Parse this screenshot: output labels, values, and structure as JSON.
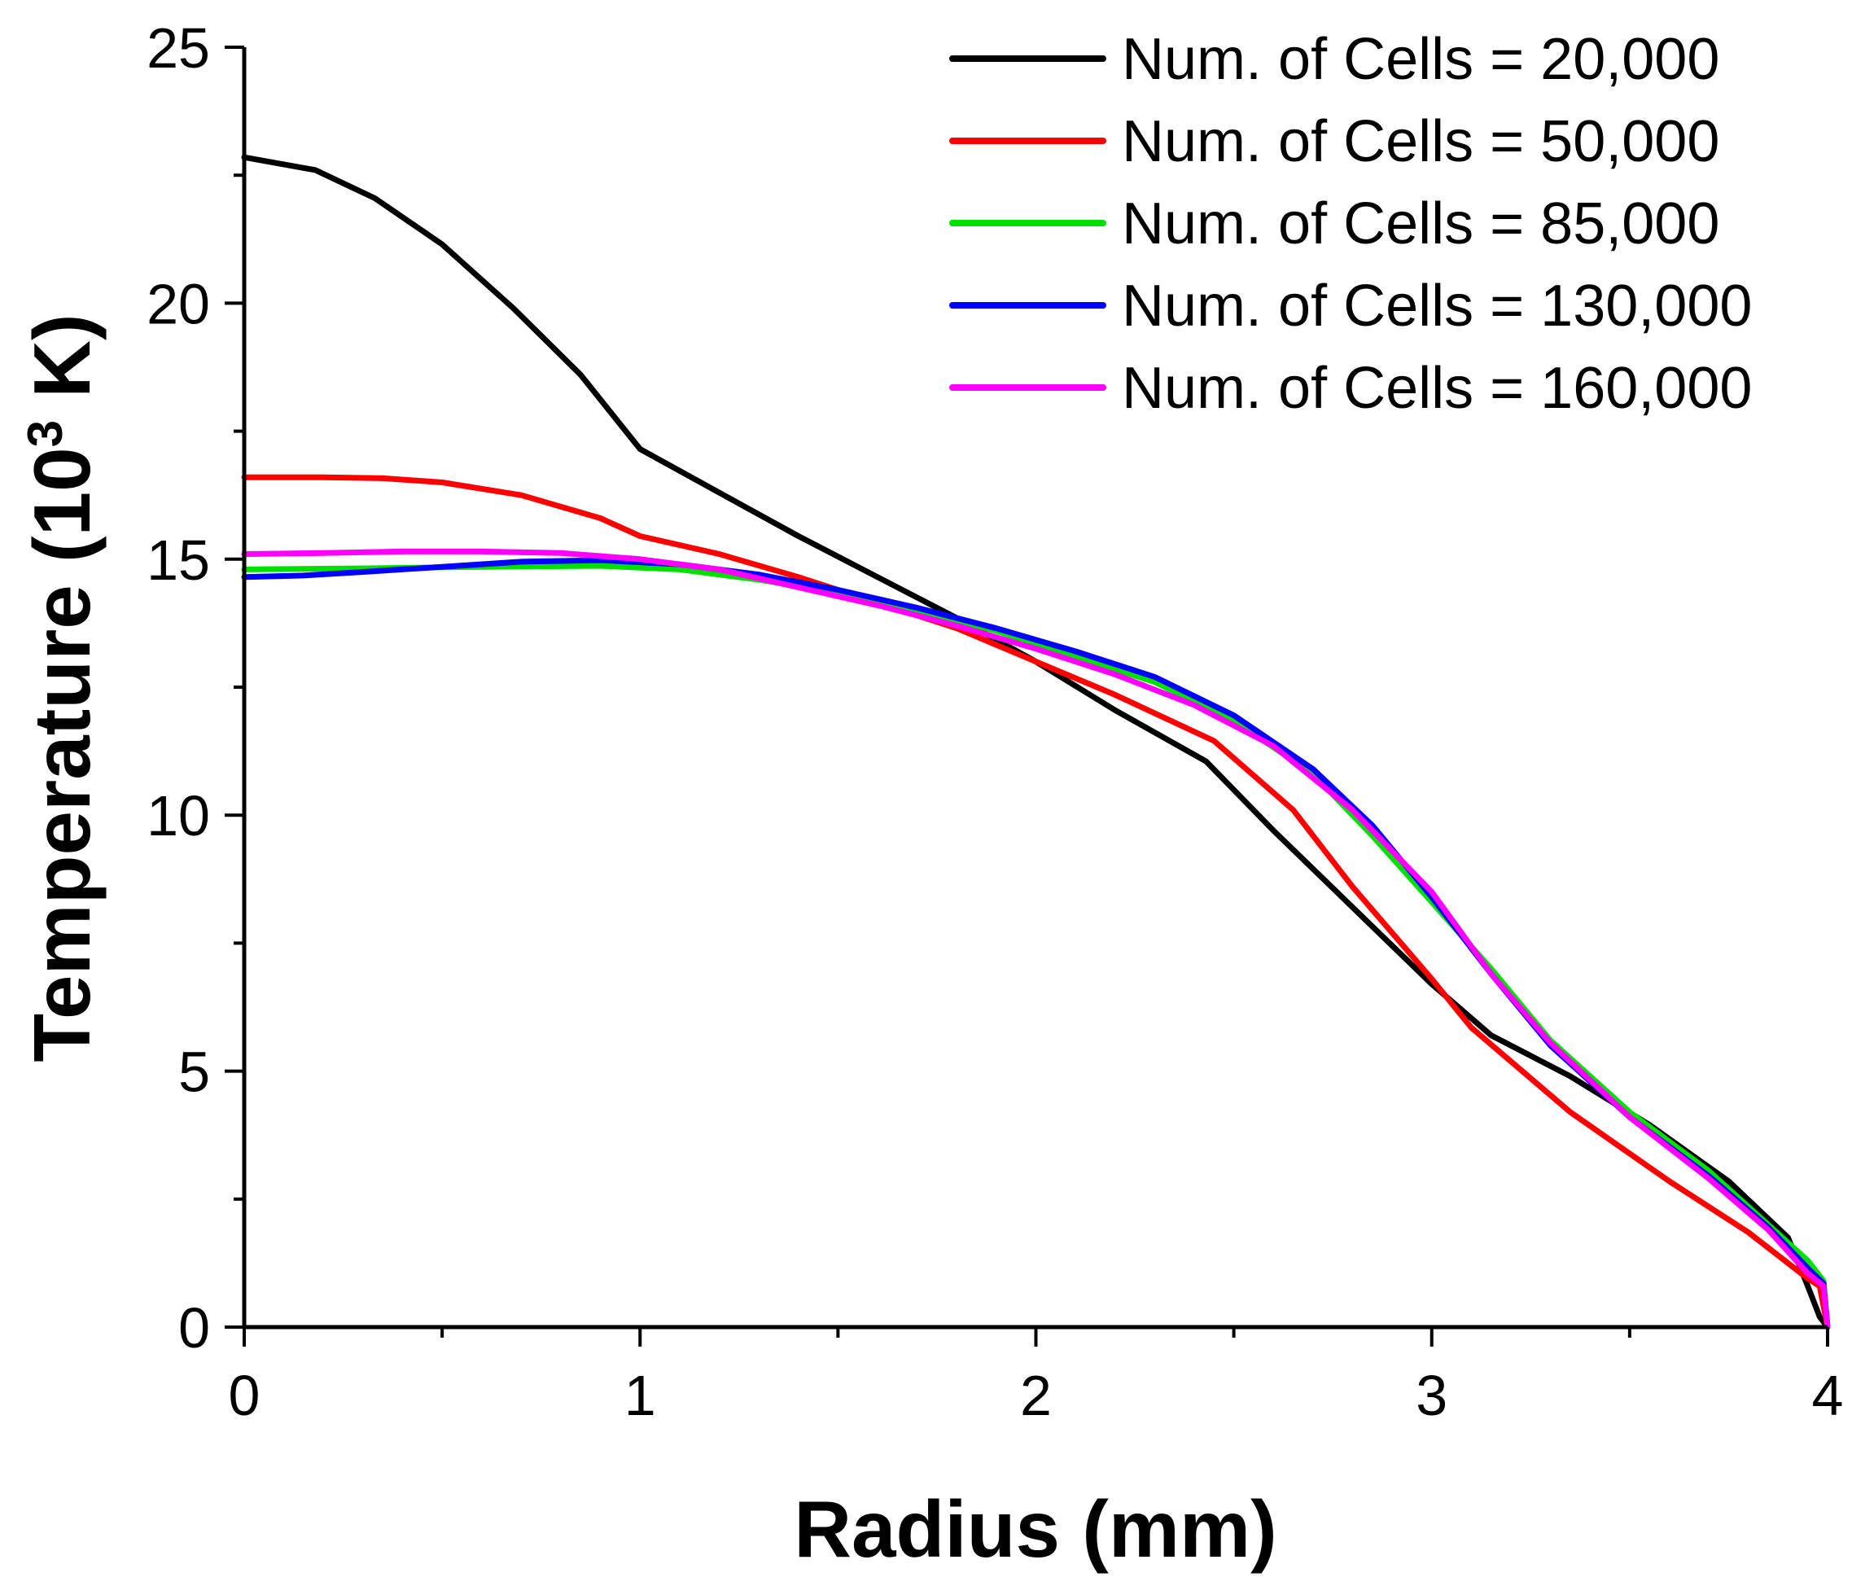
{
  "chart_data": {
    "type": "line",
    "title": "",
    "xlabel": "Radius (mm)",
    "ylabel_parts": {
      "before": "Temperature (10",
      "superscript": "3",
      "after": " K)"
    },
    "xlim": [
      0,
      4
    ],
    "ylim": [
      0,
      25
    ],
    "xticks": [
      0,
      1,
      2,
      3,
      4
    ],
    "xtick_labels": [
      "0",
      "1",
      "2",
      "3",
      "4"
    ],
    "yticks": [
      0,
      5,
      10,
      15,
      20,
      25
    ],
    "ytick_labels": [
      "0",
      "5",
      "10",
      "15",
      "20",
      "25"
    ],
    "grid": false,
    "legend_position": "top-right",
    "series": [
      {
        "name": "Num. of Cells = 20,000",
        "color": "#000000",
        "x": [
          0,
          0.18,
          0.33,
          0.5,
          0.68,
          0.85,
          1.0,
          1.2,
          1.4,
          1.6,
          1.8,
          2.0,
          2.2,
          2.43,
          2.6,
          2.8,
          3.0,
          3.15,
          3.35,
          3.55,
          3.75,
          3.9,
          3.95,
          3.98,
          4.0
        ],
        "y": [
          22.85,
          22.6,
          22.05,
          21.15,
          19.9,
          18.6,
          17.15,
          16.3,
          15.45,
          14.65,
          13.85,
          13.0,
          12.05,
          11.05,
          9.7,
          8.2,
          6.7,
          5.7,
          4.9,
          3.95,
          2.85,
          1.75,
          0.8,
          0.2,
          0.0
        ]
      },
      {
        "name": "Num. of Cells = 50,000",
        "color": "#ff0000",
        "x": [
          0,
          0.2,
          0.35,
          0.5,
          0.7,
          0.9,
          1.0,
          1.2,
          1.4,
          1.6,
          1.8,
          2.0,
          2.2,
          2.45,
          2.65,
          2.8,
          3.0,
          3.1,
          3.35,
          3.6,
          3.8,
          3.95,
          3.98,
          4.0
        ],
        "y": [
          16.6,
          16.6,
          16.58,
          16.5,
          16.25,
          15.8,
          15.45,
          15.1,
          14.65,
          14.15,
          13.65,
          13.0,
          12.35,
          11.45,
          10.1,
          8.6,
          6.8,
          5.85,
          4.2,
          2.85,
          1.85,
          0.95,
          0.8,
          0.0
        ]
      },
      {
        "name": "Num. of Cells = 85,000",
        "color": "#00e000",
        "x": [
          0,
          0.3,
          0.6,
          0.9,
          1.1,
          1.3,
          1.5,
          1.7,
          1.9,
          2.1,
          2.3,
          2.5,
          2.7,
          2.85,
          3.0,
          3.15,
          3.3,
          3.5,
          3.7,
          3.85,
          3.95,
          3.99,
          4.0
        ],
        "y": [
          14.8,
          14.82,
          14.85,
          14.87,
          14.8,
          14.6,
          14.35,
          14.0,
          13.6,
          13.1,
          12.6,
          11.85,
          10.8,
          9.6,
          8.3,
          7.0,
          5.6,
          4.2,
          3.05,
          2.0,
          1.3,
          0.9,
          0.0
        ]
      },
      {
        "name": "Num. of Cells = 130,000",
        "color": "#0000ff",
        "x": [
          0,
          0.15,
          0.3,
          0.5,
          0.7,
          0.9,
          1.1,
          1.3,
          1.5,
          1.7,
          1.9,
          2.1,
          2.3,
          2.5,
          2.7,
          2.85,
          3.0,
          3.15,
          3.3,
          3.5,
          3.7,
          3.85,
          3.95,
          3.99,
          4.0
        ],
        "y": [
          14.65,
          14.68,
          14.75,
          14.85,
          14.95,
          14.98,
          14.9,
          14.7,
          14.4,
          14.05,
          13.65,
          13.2,
          12.7,
          11.95,
          10.9,
          9.8,
          8.4,
          6.9,
          5.5,
          4.1,
          2.95,
          1.95,
          1.15,
          0.85,
          0.0
        ]
      },
      {
        "name": "Num. of Cells = 160,000",
        "color": "#ff00ff",
        "x": [
          0,
          0.2,
          0.4,
          0.6,
          0.8,
          1.0,
          1.2,
          1.4,
          1.6,
          1.8,
          2.0,
          2.2,
          2.4,
          2.6,
          2.8,
          3.0,
          3.15,
          3.3,
          3.5,
          3.7,
          3.85,
          3.95,
          3.99,
          4.0
        ],
        "y": [
          15.1,
          15.12,
          15.15,
          15.15,
          15.12,
          15.0,
          14.8,
          14.45,
          14.1,
          13.7,
          13.25,
          12.75,
          12.15,
          11.35,
          10.1,
          8.5,
          6.9,
          5.55,
          4.1,
          2.9,
          1.9,
          1.05,
          0.8,
          0.0
        ]
      }
    ]
  }
}
